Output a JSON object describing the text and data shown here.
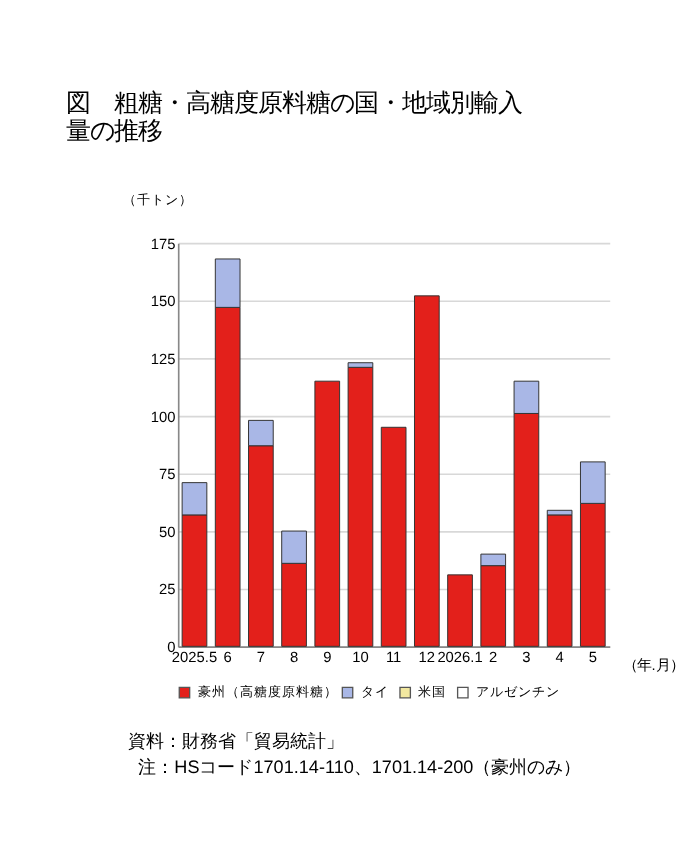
{
  "chart_data": {
    "type": "bar",
    "title": "図　粗糖・高糖度原料糖の国・地域別輸入量の推移",
    "ylabel": "（千トン）",
    "xlabel": "（年.月）",
    "categories": [
      "2025.5",
      "6",
      "7",
      "8",
      "9",
      "10",
      "11",
      "12",
      "2026.1",
      "2",
      "3",
      "4",
      "5"
    ],
    "stacked": true,
    "series": [
      {
        "name": "豪州（高糖度原料糖）",
        "color": "#e3201b",
        "values": [
          57,
          147,
          87,
          36,
          115,
          121,
          95,
          152,
          31,
          35,
          101,
          57,
          62
        ]
      },
      {
        "name": "タイ",
        "color": "#a9b7e6",
        "values": [
          14,
          21,
          11,
          14,
          null,
          2,
          null,
          null,
          null,
          5,
          14,
          2,
          18
        ]
      },
      {
        "name": "米国",
        "color": "#f2e8a0",
        "values": [
          null,
          null,
          null,
          null,
          null,
          null,
          null,
          null,
          null,
          null,
          null,
          null,
          null
        ]
      },
      {
        "name": "アルゼンチン",
        "color": "#ffffff",
        "values": [
          null,
          null,
          null,
          null,
          null,
          null,
          null,
          null,
          null,
          null,
          null,
          null,
          null
        ]
      }
    ],
    "ylim": [
      0,
      175
    ],
    "yticks": [
      0,
      25,
      50,
      75,
      100,
      125,
      150,
      175
    ],
    "grid": "y",
    "legend": "bottom",
    "annotations": [
      "資料：財務省「貿易統計」",
      "注：HSコード1701.14-110、1701.14-200（豪州のみ）"
    ]
  }
}
